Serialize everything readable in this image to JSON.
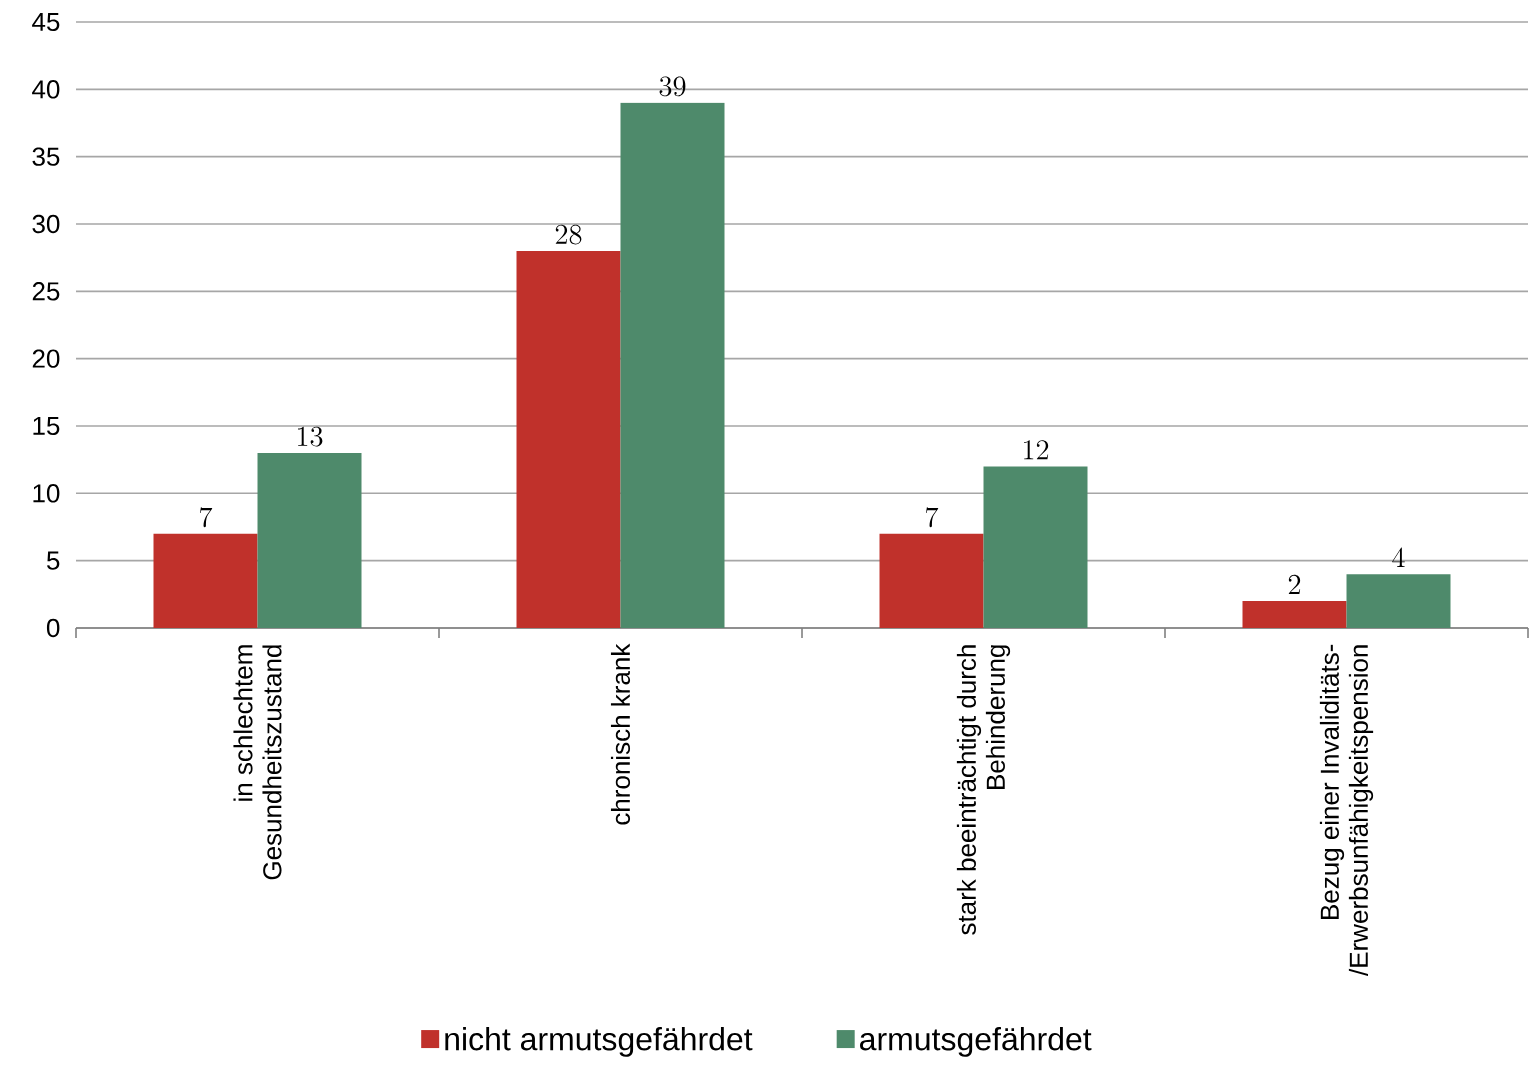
{
  "chart_data": {
    "type": "bar",
    "categories": [
      "in schlechtem Gesundheitszustand",
      "chronisch krank",
      "stark beeinträchtigt durch Behinderung",
      "Bezug einer Invaliditäts-/Erwerbsunfähigkeitspension"
    ],
    "series": [
      {
        "name": "nicht armutsgefährdet",
        "color": "#c0312b",
        "values": [
          7,
          28,
          7,
          2
        ]
      },
      {
        "name": "armutsgefährdet",
        "color": "#4e8a6b",
        "values": [
          13,
          39,
          12,
          4
        ]
      }
    ],
    "ylim": [
      0,
      45
    ],
    "yticks": [
      0,
      5,
      10,
      15,
      20,
      25,
      30,
      35,
      40,
      45
    ],
    "grid": "y",
    "legend": "bottom",
    "data_labels": true
  }
}
